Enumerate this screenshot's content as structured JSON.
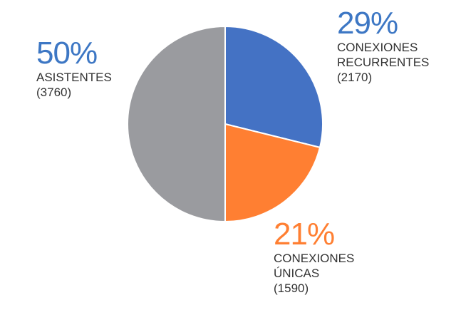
{
  "chart_data": {
    "type": "pie",
    "slices": [
      {
        "key": "recurrentes",
        "percent_label": "29%",
        "label_lines": [
          "CONEXIONES",
          "RECURRENTES",
          "(2170)"
        ],
        "value": 2170,
        "color": "#4472C4"
      },
      {
        "key": "unicas",
        "percent_label": "21%",
        "label_lines": [
          "CONEXIONES",
          "ÚNICAS",
          "(1590)"
        ],
        "value": 1590,
        "color": "#FF7F32"
      },
      {
        "key": "asistentes",
        "percent_label": "50%",
        "label_lines": [
          "ASISTENTES",
          "(3760)"
        ],
        "value": 3760,
        "color": "#9A9B9F"
      }
    ],
    "start_angle": "12 o'clock",
    "direction": "clockwise"
  }
}
